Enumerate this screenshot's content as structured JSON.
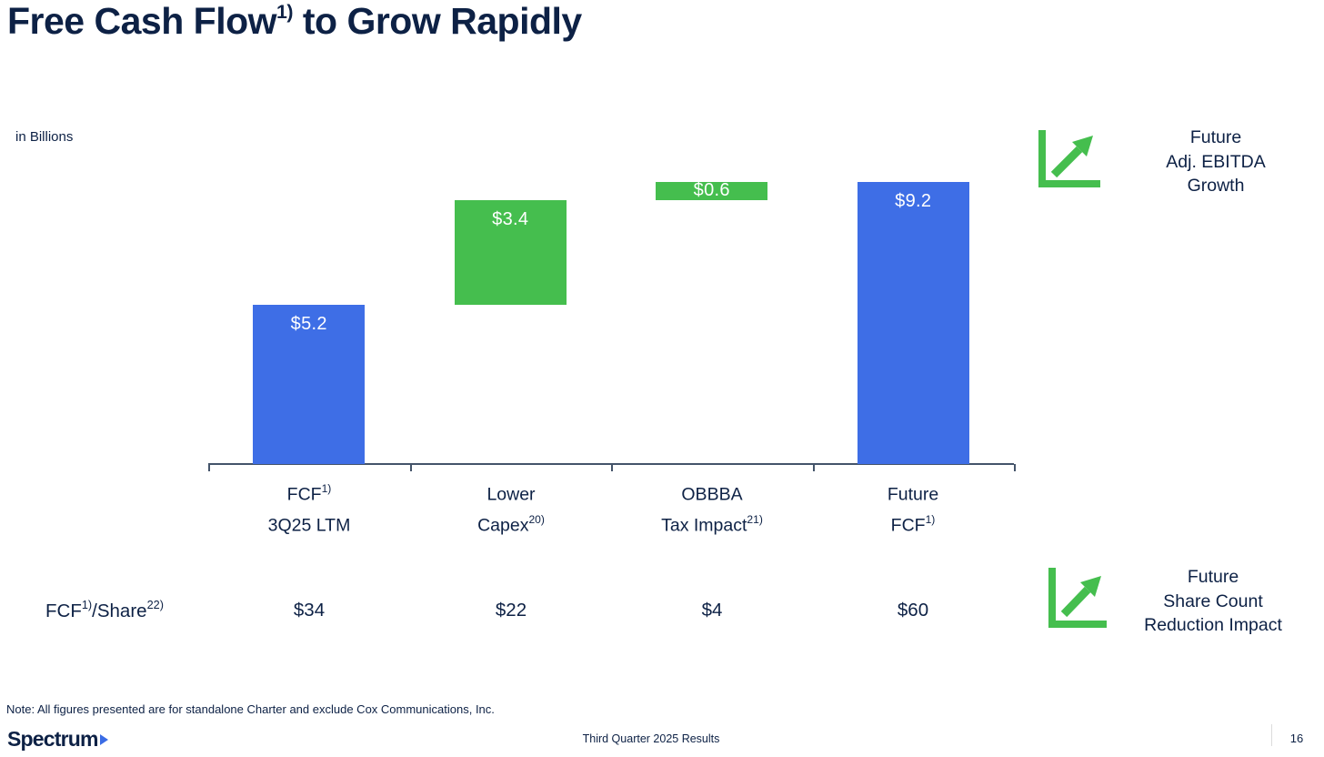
{
  "slide": {
    "title": {
      "main": "Free Cash Flow",
      "sup": "1)",
      "rest": "to Grow Rapidly"
    },
    "units_label": "in Billions",
    "note": "Note: All figures presented are for standalone Charter and exclude Cox Communications, Inc.",
    "footer": {
      "brand": "Spectrum",
      "center": "Third Quarter 2025 Results",
      "page": "16"
    }
  },
  "chart_data": {
    "type": "bar",
    "subtype": "waterfall",
    "title": "Free Cash Flow to Grow Rapidly",
    "unit": "USD billions",
    "categories": [
      "FCF 3Q25 LTM",
      "Lower Capex",
      "OBBBA Tax Impact",
      "Future FCF"
    ],
    "values": [
      5.2,
      3.4,
      0.6,
      9.2
    ],
    "cumulative_start": [
      0,
      5.2,
      8.6,
      0
    ],
    "bar_labels": [
      "$5.2",
      "$3.4",
      "$0.6",
      "$9.2"
    ],
    "bar_colors": [
      "#3E6EE6",
      "#45BE4E",
      "#45BE4E",
      "#3E6EE6"
    ],
    "ylim": [
      0,
      9.2
    ],
    "gridlines": false,
    "legend": "none",
    "category_labels": [
      {
        "line1": "FCF",
        "sup1": "1)",
        "line2": "3Q25 LTM",
        "sup2": ""
      },
      {
        "line1": "Lower",
        "sup1": "",
        "line2": "Capex",
        "sup2": "20)"
      },
      {
        "line1": "OBBBA",
        "sup1": "",
        "line2": "Tax Impact",
        "sup2": "21)"
      },
      {
        "line1": "Future",
        "sup1": "",
        "line2": "FCF",
        "sup2": "1)"
      }
    ],
    "per_share": {
      "label": {
        "p1": "FCF",
        "s1": "1)",
        "p2": "/Share",
        "s2": "22)"
      },
      "values": [
        "$34",
        "$22",
        "$4",
        "$60"
      ]
    }
  },
  "annotations": [
    {
      "icon": "growth-arrow-icon",
      "line1": "Future",
      "line2": "Adj. EBITDA",
      "line3": "Growth"
    },
    {
      "icon": "growth-arrow-icon",
      "line1": "Future",
      "line2": "Share Count",
      "line3": "Reduction Impact"
    }
  ],
  "colors": {
    "navy": "#0D2145",
    "blue": "#3E6EE6",
    "green": "#45BE4E",
    "axis": "#44546A"
  }
}
